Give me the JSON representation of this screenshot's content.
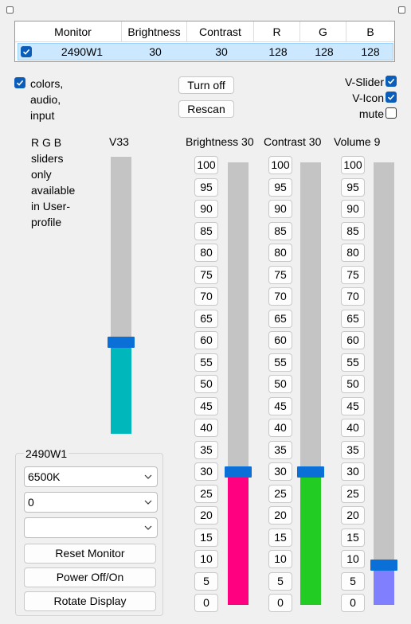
{
  "table": {
    "headers": [
      "Monitor",
      "Brightness",
      "Contrast",
      "R",
      "G",
      "B"
    ],
    "row": {
      "monitor": "2490W1",
      "brightness": "30",
      "contrast": "30",
      "r": "128",
      "g": "128",
      "b": "128"
    }
  },
  "options": {
    "colors_audio_input": {
      "label_1": "colors,",
      "label_2": "audio,",
      "label_3": "input",
      "checked": true
    },
    "v_slider": {
      "label": "V-Slider",
      "checked": true
    },
    "v_icon": {
      "label": "V-Icon",
      "checked": true
    },
    "mute": {
      "label": "mute",
      "checked": false
    }
  },
  "buttons": {
    "turn_off": "Turn off",
    "rescan": "Rescan"
  },
  "rgb_note": [
    "R G B",
    "sliders",
    "only",
    "available",
    "in User-",
    "profile"
  ],
  "v33": {
    "label": "V33",
    "value_fraction": 0.33,
    "fill_color": "#00b8bc"
  },
  "brightness": {
    "label": "Brightness 30",
    "value": 30,
    "fill_color": "#ff0080"
  },
  "contrast": {
    "label": "Contrast 30",
    "value": 30,
    "fill_color": "#22cc22"
  },
  "volume": {
    "label": "Volume 9",
    "value": 9,
    "fill_color": "#8080ff"
  },
  "steps": [
    "100",
    "95",
    "90",
    "85",
    "80",
    "75",
    "70",
    "65",
    "60",
    "55",
    "50",
    "45",
    "40",
    "35",
    "30",
    "25",
    "20",
    "15",
    "10",
    "5",
    "0"
  ],
  "monitor_panel": {
    "title": "2490W1",
    "color_temp": "6500K",
    "combo2": "0",
    "combo3": "",
    "reset": "Reset Monitor",
    "power": "Power Off/On",
    "rotate": "Rotate Display"
  },
  "colors": {
    "accent": "#0a5eb9",
    "thumb": "#0a6fd6",
    "track": "#c4c4c4",
    "selection": "#cce8ff"
  }
}
